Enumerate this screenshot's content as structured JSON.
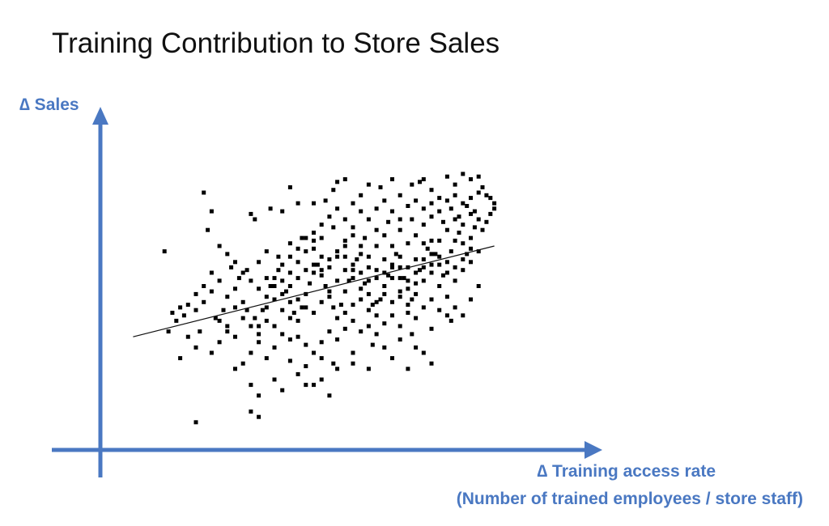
{
  "chart_data": {
    "type": "scatter",
    "title": "Training Contribution to Store Sales",
    "ylabel": "∆ Sales",
    "xlabel": "∆ Training access rate",
    "xlabel_sub": "(Number of trained employees / store staff)",
    "xlim": [
      0,
      100
    ],
    "ylim": [
      0,
      100
    ],
    "grid": false,
    "legend": "none",
    "axis_color": "#4a78c2",
    "point_color": "#000000",
    "trendline": {
      "x": [
        4,
        96
      ],
      "y": [
        36,
        70
      ]
    },
    "points": [
      [
        22,
        90
      ],
      [
        24,
        83
      ],
      [
        12,
        68
      ],
      [
        23,
        76
      ],
      [
        34,
        82
      ],
      [
        35,
        80
      ],
      [
        39,
        84
      ],
      [
        42,
        83
      ],
      [
        44,
        92
      ],
      [
        46,
        86
      ],
      [
        50,
        86
      ],
      [
        53,
        87
      ],
      [
        55,
        91
      ],
      [
        56,
        94
      ],
      [
        58,
        95
      ],
      [
        62,
        89
      ],
      [
        64,
        93
      ],
      [
        67,
        92
      ],
      [
        70,
        95
      ],
      [
        72,
        89
      ],
      [
        75,
        93
      ],
      [
        77,
        94
      ],
      [
        78,
        95
      ],
      [
        80,
        91
      ],
      [
        82,
        88
      ],
      [
        84,
        96
      ],
      [
        86,
        93
      ],
      [
        88,
        97
      ],
      [
        90,
        95
      ],
      [
        92,
        96
      ],
      [
        93,
        92
      ],
      [
        94,
        89
      ],
      [
        95,
        88
      ],
      [
        96,
        86
      ],
      [
        89,
        85
      ],
      [
        91,
        83
      ],
      [
        85,
        84
      ],
      [
        87,
        81
      ],
      [
        83,
        79
      ],
      [
        80,
        81
      ],
      [
        78,
        78
      ],
      [
        75,
        80
      ],
      [
        72,
        76
      ],
      [
        69,
        79
      ],
      [
        66,
        76
      ],
      [
        63,
        73
      ],
      [
        60,
        74
      ],
      [
        58,
        70
      ],
      [
        55,
        77
      ],
      [
        52,
        73
      ],
      [
        50,
        69
      ],
      [
        47,
        73
      ],
      [
        44,
        71
      ],
      [
        41,
        66
      ],
      [
        38,
        68
      ],
      [
        36,
        64
      ],
      [
        33,
        61
      ],
      [
        31,
        58
      ],
      [
        29,
        62
      ],
      [
        26,
        57
      ],
      [
        24,
        53
      ],
      [
        22,
        49
      ],
      [
        20,
        46
      ],
      [
        17,
        44
      ],
      [
        15,
        42
      ],
      [
        13,
        38
      ],
      [
        21,
        38
      ],
      [
        25,
        43
      ],
      [
        27,
        46
      ],
      [
        28,
        51
      ],
      [
        30,
        54
      ],
      [
        32,
        49
      ],
      [
        33,
        46
      ],
      [
        35,
        43
      ],
      [
        36,
        40
      ],
      [
        37,
        46
      ],
      [
        38,
        51
      ],
      [
        39,
        55
      ],
      [
        40,
        58
      ],
      [
        41,
        61
      ],
      [
        42,
        57
      ],
      [
        43,
        53
      ],
      [
        44,
        49
      ],
      [
        45,
        45
      ],
      [
        46,
        42
      ],
      [
        47,
        47
      ],
      [
        48,
        52
      ],
      [
        49,
        56
      ],
      [
        50,
        60
      ],
      [
        51,
        63
      ],
      [
        52,
        59
      ],
      [
        53,
        55
      ],
      [
        54,
        51
      ],
      [
        55,
        47
      ],
      [
        56,
        43
      ],
      [
        57,
        48
      ],
      [
        58,
        53
      ],
      [
        59,
        57
      ],
      [
        60,
        61
      ],
      [
        61,
        65
      ],
      [
        62,
        60
      ],
      [
        63,
        56
      ],
      [
        64,
        52
      ],
      [
        65,
        48
      ],
      [
        66,
        44
      ],
      [
        67,
        50
      ],
      [
        68,
        55
      ],
      [
        69,
        59
      ],
      [
        70,
        63
      ],
      [
        71,
        67
      ],
      [
        72,
        62
      ],
      [
        73,
        58
      ],
      [
        74,
        54
      ],
      [
        75,
        50
      ],
      [
        76,
        56
      ],
      [
        77,
        61
      ],
      [
        78,
        65
      ],
      [
        79,
        69
      ],
      [
        80,
        72
      ],
      [
        81,
        67
      ],
      [
        82,
        63
      ],
      [
        83,
        59
      ],
      [
        84,
        64
      ],
      [
        85,
        68
      ],
      [
        86,
        72
      ],
      [
        87,
        75
      ],
      [
        88,
        71
      ],
      [
        89,
        67
      ],
      [
        90,
        73
      ],
      [
        91,
        77
      ],
      [
        92,
        80
      ],
      [
        93,
        76
      ],
      [
        94,
        79
      ],
      [
        95,
        82
      ],
      [
        96,
        84
      ],
      [
        46,
        50
      ],
      [
        48,
        47
      ],
      [
        50,
        45
      ],
      [
        52,
        49
      ],
      [
        54,
        53
      ],
      [
        56,
        57
      ],
      [
        58,
        61
      ],
      [
        60,
        58
      ],
      [
        62,
        54
      ],
      [
        64,
        57
      ],
      [
        66,
        61
      ],
      [
        68,
        65
      ],
      [
        70,
        58
      ],
      [
        72,
        53
      ],
      [
        74,
        48
      ],
      [
        76,
        52
      ],
      [
        78,
        57
      ],
      [
        80,
        60
      ],
      [
        82,
        55
      ],
      [
        84,
        51
      ],
      [
        86,
        57
      ],
      [
        88,
        61
      ],
      [
        90,
        64
      ],
      [
        92,
        68
      ],
      [
        40,
        50
      ],
      [
        42,
        46
      ],
      [
        44,
        43
      ],
      [
        38,
        47
      ],
      [
        36,
        54
      ],
      [
        34,
        57
      ],
      [
        32,
        60
      ],
      [
        30,
        64
      ],
      [
        28,
        67
      ],
      [
        26,
        70
      ],
      [
        24,
        60
      ],
      [
        22,
        55
      ],
      [
        20,
        52
      ],
      [
        18,
        48
      ],
      [
        16,
        47
      ],
      [
        14,
        45
      ],
      [
        44,
        60
      ],
      [
        46,
        64
      ],
      [
        48,
        68
      ],
      [
        50,
        72
      ],
      [
        52,
        66
      ],
      [
        54,
        62
      ],
      [
        56,
        66
      ],
      [
        58,
        72
      ],
      [
        60,
        77
      ],
      [
        62,
        70
      ],
      [
        64,
        66
      ],
      [
        66,
        70
      ],
      [
        68,
        74
      ],
      [
        70,
        70
      ],
      [
        72,
        66
      ],
      [
        74,
        71
      ],
      [
        76,
        74
      ],
      [
        78,
        71
      ],
      [
        80,
        67
      ],
      [
        82,
        72
      ],
      [
        84,
        76
      ],
      [
        86,
        80
      ],
      [
        88,
        78
      ],
      [
        90,
        82
      ],
      [
        40,
        40
      ],
      [
        42,
        37
      ],
      [
        44,
        35
      ],
      [
        46,
        36
      ],
      [
        48,
        33
      ],
      [
        50,
        30
      ],
      [
        52,
        34
      ],
      [
        54,
        38
      ],
      [
        56,
        35
      ],
      [
        58,
        39
      ],
      [
        60,
        42
      ],
      [
        62,
        38
      ],
      [
        64,
        40
      ],
      [
        66,
        37
      ],
      [
        68,
        41
      ],
      [
        70,
        44
      ],
      [
        72,
        40
      ],
      [
        74,
        45
      ],
      [
        76,
        43
      ],
      [
        78,
        47
      ],
      [
        80,
        50
      ],
      [
        82,
        46
      ],
      [
        84,
        44
      ],
      [
        86,
        47
      ],
      [
        32,
        26
      ],
      [
        34,
        30
      ],
      [
        36,
        34
      ],
      [
        38,
        28
      ],
      [
        40,
        32
      ],
      [
        44,
        27
      ],
      [
        48,
        25
      ],
      [
        52,
        28
      ],
      [
        55,
        26
      ],
      [
        60,
        30
      ],
      [
        65,
        33
      ],
      [
        70,
        28
      ],
      [
        75,
        37
      ],
      [
        80,
        39
      ],
      [
        85,
        42
      ],
      [
        88,
        44
      ],
      [
        90,
        50
      ],
      [
        92,
        55
      ],
      [
        34,
        18
      ],
      [
        36,
        14
      ],
      [
        40,
        20
      ],
      [
        42,
        16
      ],
      [
        46,
        22
      ],
      [
        48,
        18
      ],
      [
        52,
        20
      ],
      [
        56,
        24
      ],
      [
        60,
        26
      ],
      [
        64,
        24
      ],
      [
        68,
        32
      ],
      [
        72,
        35
      ],
      [
        76,
        32
      ],
      [
        26,
        42
      ],
      [
        28,
        40
      ],
      [
        30,
        47
      ],
      [
        32,
        43
      ],
      [
        34,
        40
      ],
      [
        36,
        37
      ],
      [
        38,
        42
      ],
      [
        24,
        30
      ],
      [
        26,
        34
      ],
      [
        28,
        38
      ],
      [
        30,
        36
      ],
      [
        20,
        32
      ],
      [
        18,
        36
      ],
      [
        16,
        28
      ],
      [
        30,
        24
      ],
      [
        20,
        4
      ],
      [
        34,
        8
      ],
      [
        36,
        6
      ],
      [
        50,
        18
      ],
      [
        54,
        14
      ],
      [
        74,
        24
      ],
      [
        78,
        30
      ],
      [
        80,
        26
      ],
      [
        58,
        45
      ],
      [
        60,
        48
      ],
      [
        62,
        50
      ],
      [
        64,
        46
      ],
      [
        66,
        49
      ],
      [
        68,
        52
      ],
      [
        70,
        49
      ],
      [
        72,
        51
      ],
      [
        74,
        57
      ],
      [
        76,
        60
      ],
      [
        78,
        62
      ],
      [
        80,
        63
      ],
      [
        82,
        66
      ],
      [
        84,
        60
      ],
      [
        86,
        62
      ],
      [
        88,
        65
      ],
      [
        90,
        69
      ],
      [
        42,
        52
      ],
      [
        44,
        55
      ],
      [
        46,
        58
      ],
      [
        48,
        61
      ],
      [
        50,
        63
      ],
      [
        52,
        61
      ],
      [
        54,
        65
      ],
      [
        56,
        68
      ],
      [
        58,
        66
      ],
      [
        60,
        63
      ],
      [
        62,
        67
      ],
      [
        64,
        62
      ],
      [
        66,
        58
      ],
      [
        68,
        60
      ],
      [
        70,
        62
      ],
      [
        72,
        58
      ],
      [
        74,
        62
      ],
      [
        76,
        65
      ],
      [
        40,
        55
      ],
      [
        38,
        58
      ],
      [
        42,
        63
      ],
      [
        44,
        66
      ],
      [
        46,
        69
      ],
      [
        48,
        73
      ],
      [
        50,
        75
      ],
      [
        52,
        78
      ],
      [
        54,
        81
      ],
      [
        56,
        84
      ],
      [
        58,
        80
      ],
      [
        60,
        86
      ],
      [
        62,
        83
      ],
      [
        64,
        80
      ],
      [
        66,
        84
      ],
      [
        68,
        87
      ],
      [
        70,
        83
      ],
      [
        72,
        80
      ],
      [
        74,
        85
      ],
      [
        76,
        87
      ],
      [
        78,
        84
      ],
      [
        80,
        86
      ],
      [
        82,
        83
      ],
      [
        84,
        87
      ],
      [
        86,
        89
      ],
      [
        88,
        86
      ],
      [
        90,
        88
      ],
      [
        92,
        90
      ]
    ]
  }
}
